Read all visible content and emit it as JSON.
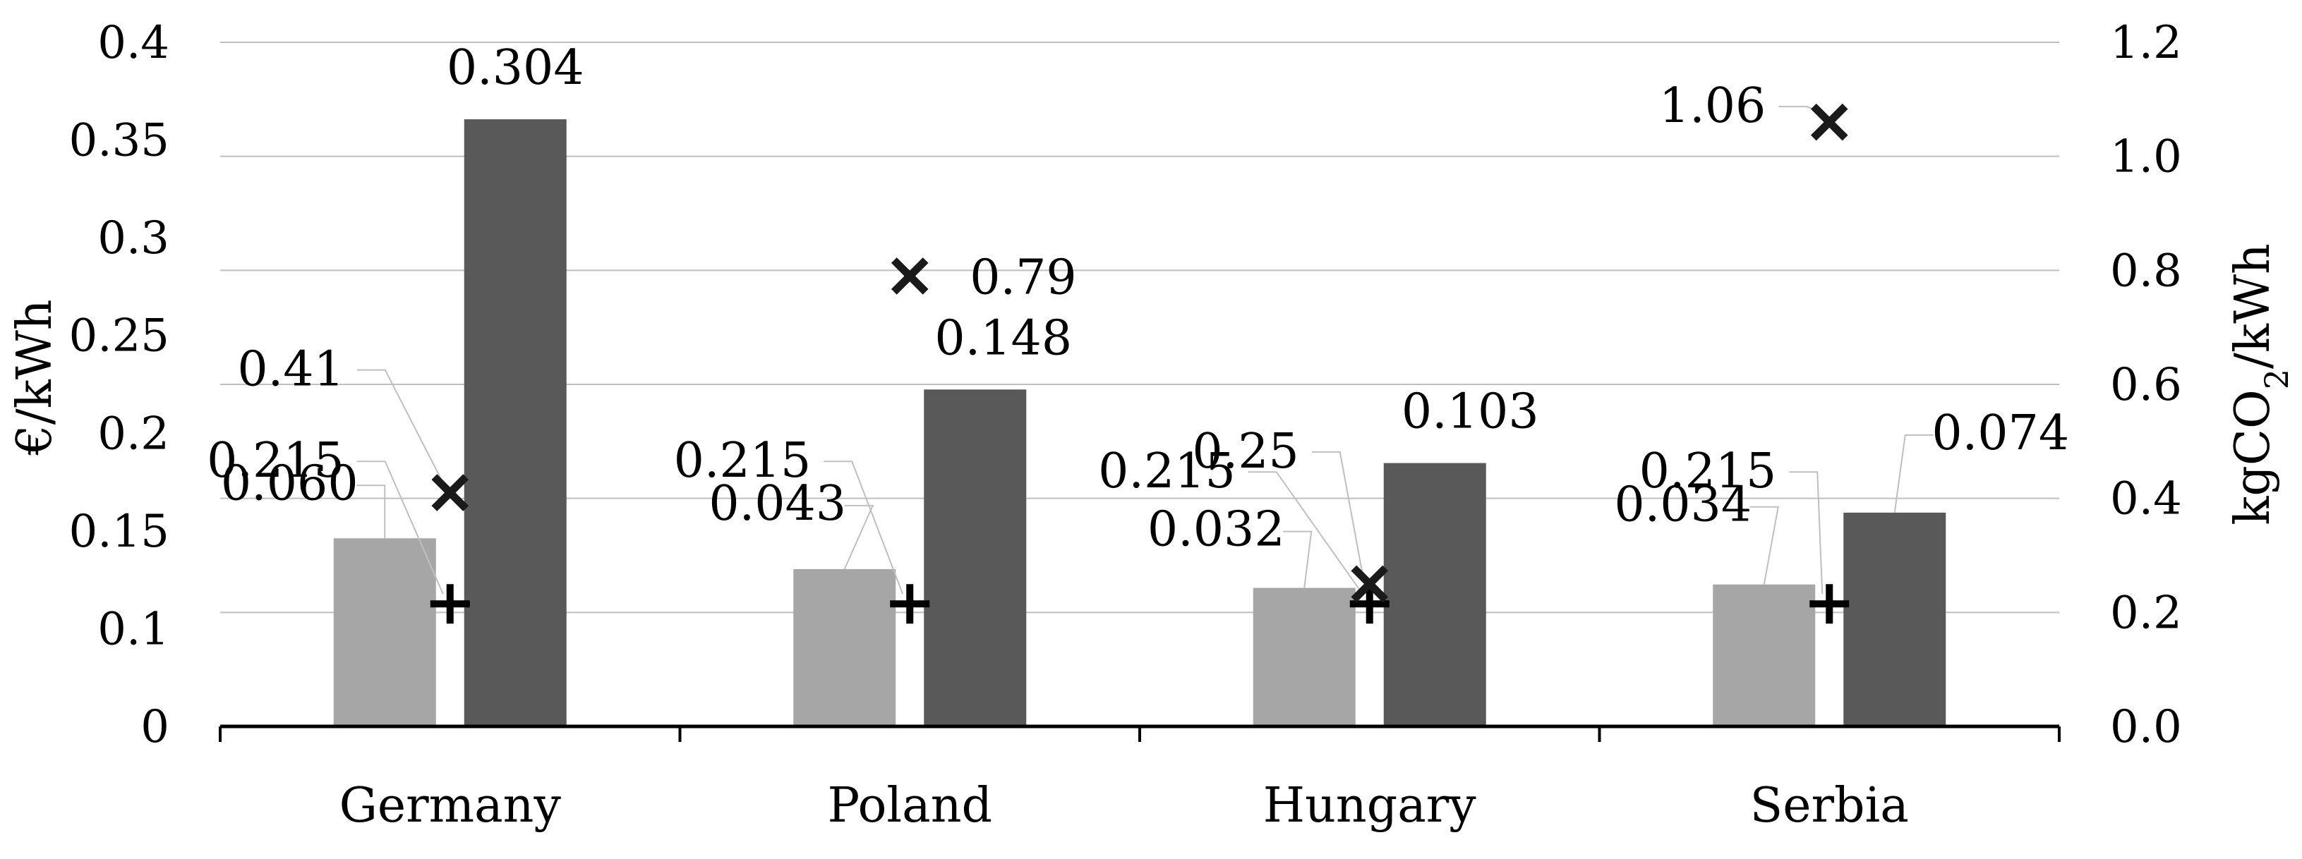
{
  "chart_data": {
    "type": "bar",
    "categories": [
      "Germany",
      "Poland",
      "Hungary",
      "Serbia"
    ],
    "left_axis": {
      "label": "€/kWh",
      "ylim": [
        0,
        0.4
      ],
      "tick_labels": [
        "0",
        "0.1",
        "0.15",
        "0.2",
        "0.25",
        "0.3",
        "0.35",
        "0.4"
      ]
    },
    "right_axis": {
      "label_parts": [
        "kgCO",
        "2",
        "/kWh"
      ],
      "ylim": [
        0.0,
        1.2
      ],
      "tick_labels": [
        "0.0",
        "0.2",
        "0.4",
        "0.6",
        "0.8",
        "1.0",
        "1.2"
      ]
    },
    "series": [
      {
        "marker": "bar",
        "axis": "left",
        "color": "#a6a6a6",
        "values": [
          0.11,
          0.092,
          0.081,
          0.083
        ],
        "data_labels": [
          "0.060",
          "0.043",
          "0.032",
          "0.034"
        ]
      },
      {
        "marker": "bar",
        "axis": "left",
        "color": "#595959",
        "values": [
          0.355,
          0.197,
          0.154,
          0.125
        ],
        "data_labels": [
          "0.304",
          "0.148",
          "0.103",
          "0.074"
        ]
      },
      {
        "marker": "plus",
        "axis": "right",
        "color": "#000000",
        "values": [
          0.215,
          0.215,
          0.215,
          0.215
        ],
        "data_labels": [
          "0.215",
          "0.215",
          "0.215",
          "0.215"
        ]
      },
      {
        "marker": "cross",
        "axis": "right",
        "color": "#1a1a1a",
        "values": [
          0.41,
          0.79,
          0.25,
          1.06
        ],
        "data_labels": [
          "0.41",
          "0.79",
          "0.25",
          "1.06"
        ]
      }
    ],
    "grid": true
  }
}
